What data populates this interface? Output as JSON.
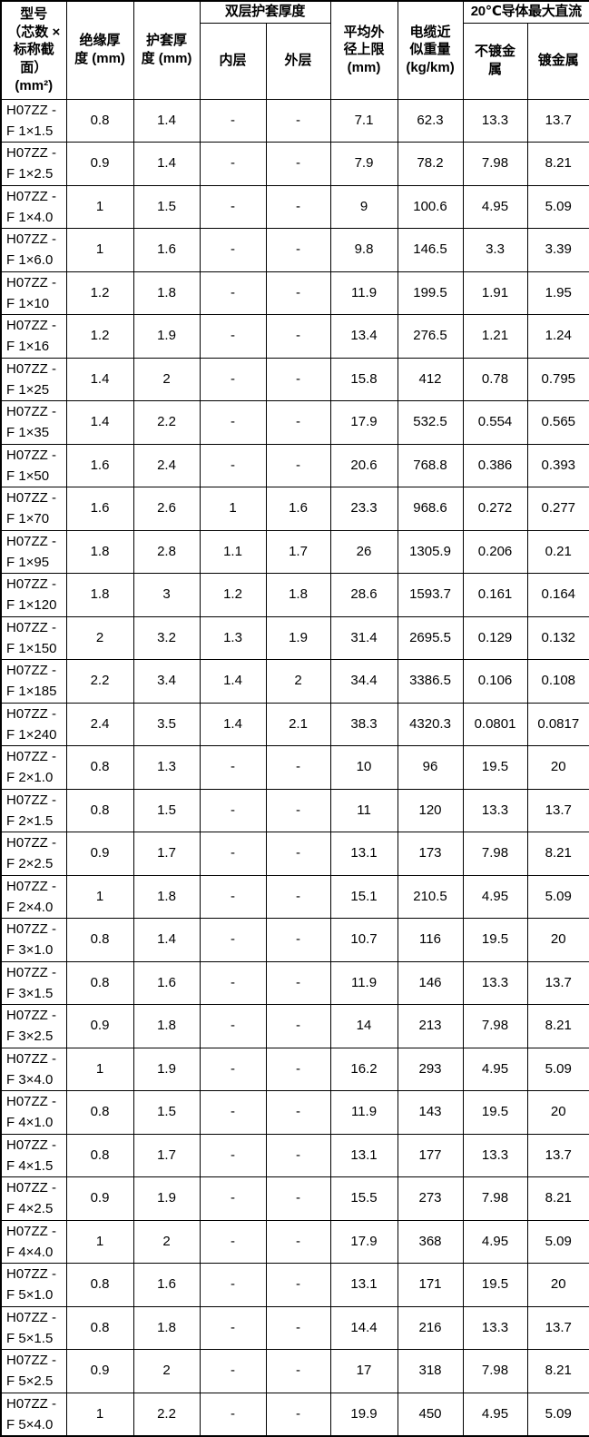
{
  "table": {
    "header": {
      "model": [
        "型号",
        "（芯数 ×",
        "标称截",
        "面）",
        "(mm²)"
      ],
      "insulation": [
        "绝缘厚",
        "度 (mm)"
      ],
      "sheath": [
        "护套厚",
        "度 (mm)"
      ],
      "double_sheath_group": "双层护套厚度",
      "inner_layer": "内层",
      "outer_layer": "外层",
      "outer_diameter": [
        "平均外",
        "径上限",
        "(mm)"
      ],
      "weight": [
        "电缆近",
        "似重量",
        "(kg/km)"
      ],
      "dc_group": "20℃导体最大直流",
      "unplated": [
        "不镀金",
        "属"
      ],
      "plated": "镀金属"
    },
    "rows": [
      {
        "model": [
          "H07ZZ -",
          "F 1×1.5"
        ],
        "values": [
          "0.8",
          "1.4",
          "-",
          "-",
          "7.1",
          "62.3",
          "13.3",
          "13.7"
        ]
      },
      {
        "model": [
          "H07ZZ -",
          "F 1×2.5"
        ],
        "values": [
          "0.9",
          "1.4",
          "-",
          "-",
          "7.9",
          "78.2",
          "7.98",
          "8.21"
        ]
      },
      {
        "model": [
          "H07ZZ -",
          "F 1×4.0"
        ],
        "values": [
          "1",
          "1.5",
          "-",
          "-",
          "9",
          "100.6",
          "4.95",
          "5.09"
        ]
      },
      {
        "model": [
          "H07ZZ -",
          "F 1×6.0"
        ],
        "values": [
          "1",
          "1.6",
          "-",
          "-",
          "9.8",
          "146.5",
          "3.3",
          "3.39"
        ]
      },
      {
        "model": [
          "H07ZZ -",
          "F 1×10"
        ],
        "values": [
          "1.2",
          "1.8",
          "-",
          "-",
          "11.9",
          "199.5",
          "1.91",
          "1.95"
        ]
      },
      {
        "model": [
          "H07ZZ -",
          "F 1×16"
        ],
        "values": [
          "1.2",
          "1.9",
          "-",
          "-",
          "13.4",
          "276.5",
          "1.21",
          "1.24"
        ]
      },
      {
        "model": [
          "H07ZZ -",
          "F 1×25"
        ],
        "values": [
          "1.4",
          "2",
          "-",
          "-",
          "15.8",
          "412",
          "0.78",
          "0.795"
        ]
      },
      {
        "model": [
          "H07ZZ -",
          "F 1×35"
        ],
        "values": [
          "1.4",
          "2.2",
          "-",
          "-",
          "17.9",
          "532.5",
          "0.554",
          "0.565"
        ]
      },
      {
        "model": [
          "H07ZZ -",
          "F 1×50"
        ],
        "values": [
          "1.6",
          "2.4",
          "-",
          "-",
          "20.6",
          "768.8",
          "0.386",
          "0.393"
        ]
      },
      {
        "model": [
          "H07ZZ -",
          "F 1×70"
        ],
        "values": [
          "1.6",
          "2.6",
          "1",
          "1.6",
          "23.3",
          "968.6",
          "0.272",
          "0.277"
        ]
      },
      {
        "model": [
          "H07ZZ -",
          "F 1×95"
        ],
        "values": [
          "1.8",
          "2.8",
          "1.1",
          "1.7",
          "26",
          "1305.9",
          "0.206",
          "0.21"
        ]
      },
      {
        "model": [
          "H07ZZ -",
          "F 1×120"
        ],
        "values": [
          "1.8",
          "3",
          "1.2",
          "1.8",
          "28.6",
          "1593.7",
          "0.161",
          "0.164"
        ]
      },
      {
        "model": [
          "H07ZZ -",
          "F 1×150"
        ],
        "values": [
          "2",
          "3.2",
          "1.3",
          "1.9",
          "31.4",
          "2695.5",
          "0.129",
          "0.132"
        ]
      },
      {
        "model": [
          "H07ZZ -",
          "F 1×185"
        ],
        "values": [
          "2.2",
          "3.4",
          "1.4",
          "2",
          "34.4",
          "3386.5",
          "0.106",
          "0.108"
        ]
      },
      {
        "model": [
          "H07ZZ -",
          "F 1×240"
        ],
        "values": [
          "2.4",
          "3.5",
          "1.4",
          "2.1",
          "38.3",
          "4320.3",
          "0.0801",
          "0.0817"
        ]
      },
      {
        "model": [
          "H07ZZ -",
          "F 2×1.0"
        ],
        "values": [
          "0.8",
          "1.3",
          "-",
          "-",
          "10",
          "96",
          "19.5",
          "20"
        ]
      },
      {
        "model": [
          "H07ZZ -",
          "F 2×1.5"
        ],
        "values": [
          "0.8",
          "1.5",
          "-",
          "-",
          "11",
          "120",
          "13.3",
          "13.7"
        ]
      },
      {
        "model": [
          "H07ZZ -",
          "F 2×2.5"
        ],
        "values": [
          "0.9",
          "1.7",
          "-",
          "-",
          "13.1",
          "173",
          "7.98",
          "8.21"
        ]
      },
      {
        "model": [
          "H07ZZ -",
          "F 2×4.0"
        ],
        "values": [
          "1",
          "1.8",
          "-",
          "-",
          "15.1",
          "210.5",
          "4.95",
          "5.09"
        ]
      },
      {
        "model": [
          "H07ZZ -",
          "F 3×1.0"
        ],
        "values": [
          "0.8",
          "1.4",
          "-",
          "-",
          "10.7",
          "116",
          "19.5",
          "20"
        ]
      },
      {
        "model": [
          "H07ZZ -",
          "F 3×1.5"
        ],
        "values": [
          "0.8",
          "1.6",
          "-",
          "-",
          "11.9",
          "146",
          "13.3",
          "13.7"
        ]
      },
      {
        "model": [
          "H07ZZ -",
          "F 3×2.5"
        ],
        "values": [
          "0.9",
          "1.8",
          "-",
          "-",
          "14",
          "213",
          "7.98",
          "8.21"
        ]
      },
      {
        "model": [
          "H07ZZ -",
          "F 3×4.0"
        ],
        "values": [
          "1",
          "1.9",
          "-",
          "-",
          "16.2",
          "293",
          "4.95",
          "5.09"
        ]
      },
      {
        "model": [
          "H07ZZ -",
          "F 4×1.0"
        ],
        "values": [
          "0.8",
          "1.5",
          "-",
          "-",
          "11.9",
          "143",
          "19.5",
          "20"
        ]
      },
      {
        "model": [
          "H07ZZ -",
          "F 4×1.5"
        ],
        "values": [
          "0.8",
          "1.7",
          "-",
          "-",
          "13.1",
          "177",
          "13.3",
          "13.7"
        ]
      },
      {
        "model": [
          "H07ZZ -",
          "F 4×2.5"
        ],
        "values": [
          "0.9",
          "1.9",
          "-",
          "-",
          "15.5",
          "273",
          "7.98",
          "8.21"
        ]
      },
      {
        "model": [
          "H07ZZ -",
          "F 4×4.0"
        ],
        "values": [
          "1",
          "2",
          "-",
          "-",
          "17.9",
          "368",
          "4.95",
          "5.09"
        ]
      },
      {
        "model": [
          "H07ZZ -",
          "F 5×1.0"
        ],
        "values": [
          "0.8",
          "1.6",
          "-",
          "-",
          "13.1",
          "171",
          "19.5",
          "20"
        ]
      },
      {
        "model": [
          "H07ZZ -",
          "F 5×1.5"
        ],
        "values": [
          "0.8",
          "1.8",
          "-",
          "-",
          "14.4",
          "216",
          "13.3",
          "13.7"
        ]
      },
      {
        "model": [
          "H07ZZ -",
          "F 5×2.5"
        ],
        "values": [
          "0.9",
          "2",
          "-",
          "-",
          "17",
          "318",
          "7.98",
          "8.21"
        ]
      },
      {
        "model": [
          "H07ZZ -",
          "F 5×4.0"
        ],
        "values": [
          "1",
          "2.2",
          "-",
          "-",
          "19.9",
          "450",
          "4.95",
          "5.09"
        ]
      }
    ]
  }
}
